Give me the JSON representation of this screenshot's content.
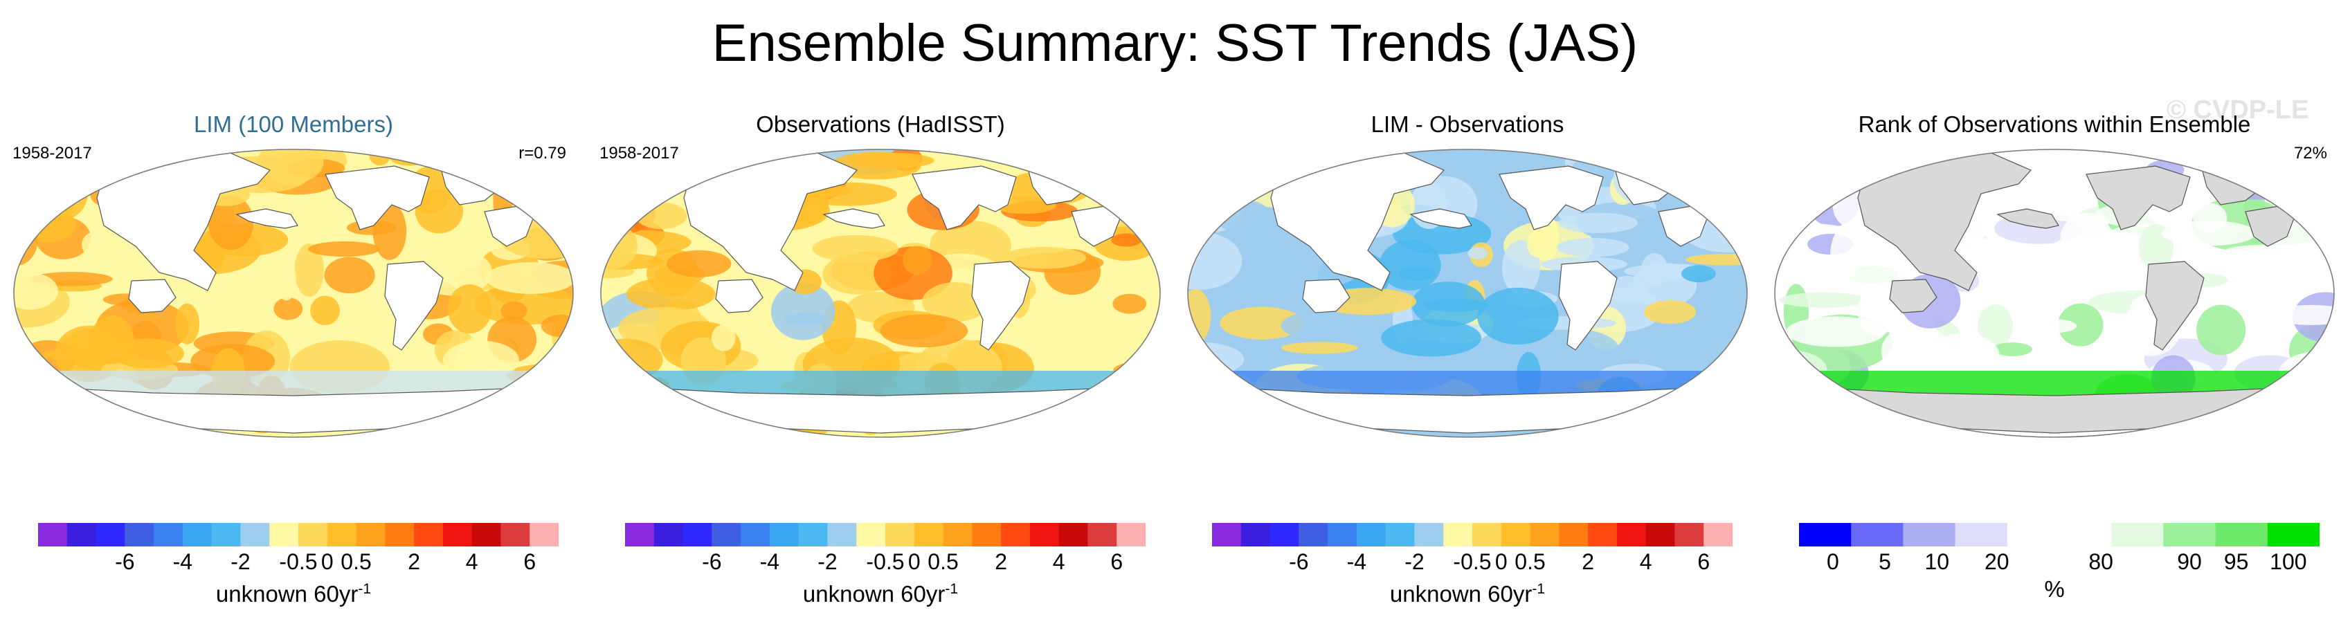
{
  "title": "Ensemble Summary: SST Trends (JAS)",
  "watermark": "© CVDP-LE",
  "colorbar_diverging": {
    "colors": [
      "#8a2be2",
      "#3a1ee0",
      "#2f28ff",
      "#3f5fe2",
      "#3b82f0",
      "#39a7f2",
      "#4bb8ef",
      "#9ecdf0",
      "#fff9a6",
      "#ffd95a",
      "#ffbf2a",
      "#ffa21e",
      "#ff7d10",
      "#ff4a10",
      "#ef1410",
      "#c80a0a",
      "#dc3c3c",
      "#ffb0b0"
    ],
    "ticks": [
      "-6",
      "-4",
      "-2",
      "-0.5",
      "0",
      "0.5",
      "2",
      "4",
      "6"
    ],
    "tick_positions": [
      3,
      5,
      7,
      9,
      10,
      11,
      13,
      15,
      17
    ],
    "units": "unknown 60yr",
    "units_sup": "-1"
  },
  "colorbar_rank": {
    "colors": [
      "#0000ff",
      "#6a6af8",
      "#aeaef2",
      "#dedefa",
      "#ffffff",
      "#ffffff",
      "#e2fbe0",
      "#9cf09a",
      "#6ee86a",
      "#00e000"
    ],
    "ticks": [
      "0",
      "5",
      "10",
      "20",
      "80",
      "90",
      "95",
      "100"
    ],
    "tick_positions": [
      0.65,
      1.65,
      2.65,
      3.8,
      5.8,
      7.5,
      8.4,
      9.4
    ],
    "units": "%"
  },
  "panels": [
    {
      "title": "LIM (100 Members)",
      "period": "1958-2017",
      "stat": "r=0.79",
      "land": "#ffffff",
      "palette": [
        "#fff9a6",
        "#ffd95a",
        "#ffbf2a",
        "#ffa21e",
        "#ffbf2a",
        "#ffd95a",
        "#ffbf2a",
        "#ffa21e"
      ],
      "polar": "#c8e3f8"
    },
    {
      "title": "Observations (HadISST)",
      "period": "1958-2017",
      "stat": "",
      "land": "#ffffff",
      "palette": [
        "#fff9a6",
        "#ffd95a",
        "#ffbf2a",
        "#ffa21e",
        "#9ecdf0",
        "#ffd95a",
        "#ff7d10",
        "#ffbf2a"
      ],
      "polar": "#4bb8ef"
    },
    {
      "title": "LIM - Observations",
      "period": "",
      "stat": "",
      "land": "#ffffff",
      "palette": [
        "#9ecdf0",
        "#c8e3f8",
        "#4bb8ef",
        "#fff9a6",
        "#9ecdf0",
        "#c8e3f8",
        "#ffd95a",
        "#9ecdf0"
      ],
      "polar": "#3b82f0"
    },
    {
      "title": "Rank of Observations within Ensemble",
      "period": "",
      "stat": "72%",
      "land": "#d9d9d9",
      "palette": [
        "#ffffff",
        "#ffffff",
        "#e2fbe0",
        "#dedefa",
        "#ffffff",
        "#9cf09a",
        "#ffffff",
        "#aeaef2"
      ],
      "polar": "#00e000"
    }
  ]
}
